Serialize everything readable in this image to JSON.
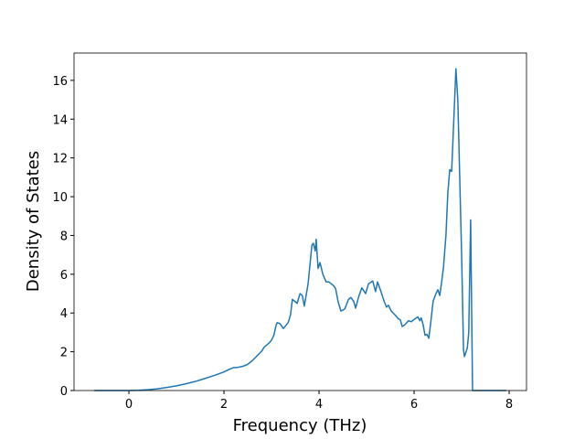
{
  "chart_data": {
    "type": "line",
    "x_label": "Frequency (THz)",
    "y_label": "Density of States",
    "xlim": [
      -1.154,
      8.365
    ],
    "ylim": [
      0,
      17.41
    ],
    "xticks": [
      0,
      2,
      4,
      6,
      8
    ],
    "yticks": [
      0,
      2,
      4,
      6,
      8,
      10,
      12,
      14,
      16
    ],
    "series": [
      {
        "color": "#1f77b4",
        "x": [
          -0.73,
          -0.5,
          0,
          0.2,
          0.4,
          0.6,
          0.8,
          1.0,
          1.2,
          1.4,
          1.6,
          1.8,
          2.0,
          2.1,
          2.2,
          2.3,
          2.4,
          2.5,
          2.6,
          2.7,
          2.8,
          2.85,
          2.95,
          3.0,
          3.05,
          3.1,
          3.12,
          3.18,
          3.25,
          3.35,
          3.4,
          3.44,
          3.54,
          3.6,
          3.65,
          3.69,
          3.77,
          3.85,
          3.88,
          3.92,
          3.94,
          3.98,
          4.02,
          4.08,
          4.15,
          4.21,
          4.31,
          4.35,
          4.4,
          4.46,
          4.54,
          4.62,
          4.67,
          4.73,
          4.77,
          4.83,
          4.9,
          4.98,
          5.04,
          5.13,
          5.19,
          5.23,
          5.29,
          5.37,
          5.42,
          5.46,
          5.52,
          5.6,
          5.67,
          5.71,
          5.75,
          5.81,
          5.88,
          5.94,
          6.02,
          6.08,
          6.12,
          6.15,
          6.19,
          6.23,
          6.27,
          6.31,
          6.35,
          6.4,
          6.46,
          6.5,
          6.54,
          6.58,
          6.62,
          6.67,
          6.71,
          6.75,
          6.79,
          6.85,
          6.88,
          6.92,
          6.96,
          7.0,
          7.04,
          7.06,
          7.12,
          7.15,
          7.19,
          7.23,
          7.94
        ],
        "values": [
          0,
          0,
          0,
          0.01,
          0.04,
          0.09,
          0.16,
          0.24,
          0.35,
          0.47,
          0.62,
          0.78,
          0.96,
          1.08,
          1.18,
          1.2,
          1.25,
          1.35,
          1.55,
          1.8,
          2.05,
          2.25,
          2.45,
          2.6,
          2.85,
          3.4,
          3.5,
          3.45,
          3.2,
          3.5,
          3.9,
          4.7,
          4.5,
          5.0,
          4.9,
          4.35,
          5.5,
          7.5,
          7.6,
          7.2,
          7.8,
          6.3,
          6.6,
          6.0,
          5.6,
          5.6,
          5.4,
          5.25,
          4.6,
          4.1,
          4.2,
          4.7,
          4.8,
          4.6,
          4.25,
          4.8,
          5.3,
          5.0,
          5.5,
          5.65,
          5.1,
          5.6,
          5.2,
          4.6,
          4.3,
          4.4,
          4.1,
          3.9,
          3.7,
          3.65,
          3.3,
          3.4,
          3.6,
          3.55,
          3.7,
          3.8,
          3.6,
          3.75,
          3.4,
          2.85,
          2.9,
          2.7,
          3.5,
          4.6,
          5.0,
          5.2,
          4.9,
          5.6,
          6.4,
          8.0,
          10.2,
          11.4,
          11.3,
          14.8,
          16.6,
          15.0,
          11.0,
          7.0,
          2.1,
          1.75,
          2.2,
          3.0,
          8.8,
          0,
          0
        ]
      }
    ]
  }
}
